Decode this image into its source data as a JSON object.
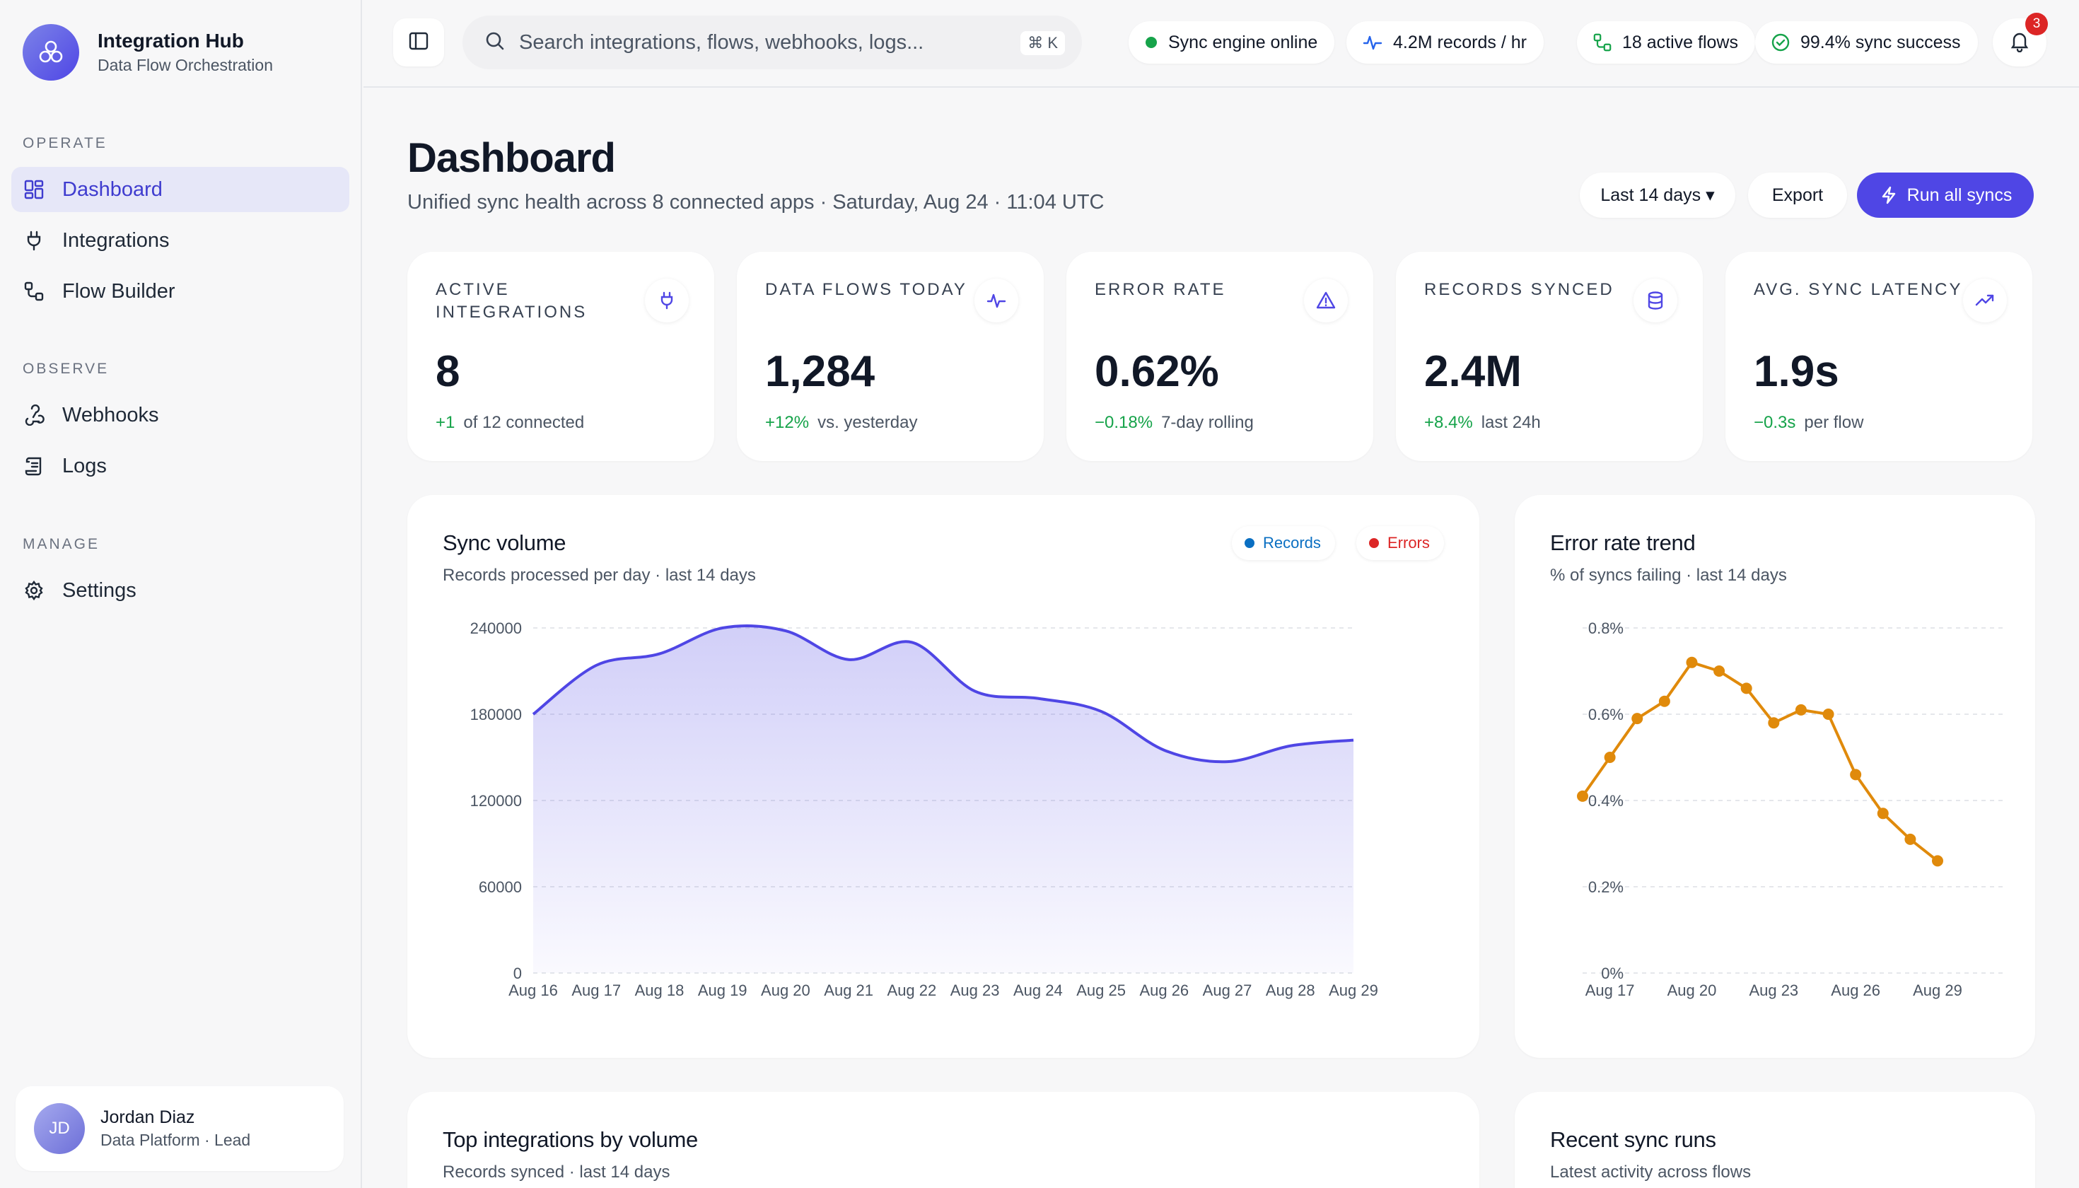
{
  "brand": {
    "title": "Integration Hub",
    "subtitle": "Data Flow Orchestration"
  },
  "nav": {
    "sections": [
      {
        "label": "OPERATE",
        "items": [
          {
            "label": "Dashboard",
            "icon": "grid-icon",
            "active": true
          },
          {
            "label": "Integrations",
            "icon": "plug-icon"
          },
          {
            "label": "Flow Builder",
            "icon": "flow-icon"
          }
        ]
      },
      {
        "label": "OBSERVE",
        "items": [
          {
            "label": "Webhooks",
            "icon": "webhook-icon"
          },
          {
            "label": "Logs",
            "icon": "logs-icon"
          }
        ]
      },
      {
        "label": "MANAGE",
        "items": [
          {
            "label": "Settings",
            "icon": "gear-icon"
          }
        ]
      }
    ]
  },
  "user": {
    "initials": "JD",
    "name": "Jordan Diaz",
    "role": "Data Platform · Lead"
  },
  "topbar": {
    "search_placeholder": "Search integrations, flows, webhooks, logs...",
    "shortcut": "⌘ K",
    "status_pills": [
      {
        "label": "Sync engine online",
        "icon": "status-dot-icon",
        "color": "#16a34a"
      },
      {
        "label": "4.2M records / hr",
        "icon": "pulse-icon",
        "color": "#2563eb"
      },
      {
        "label": "18 active flows",
        "icon": "flow-icon",
        "color": "#16a34a"
      },
      {
        "label": "99.4% sync success",
        "icon": "check-circle-icon",
        "color": "#16a34a"
      }
    ],
    "notifications": "3"
  },
  "page": {
    "title": "Dashboard",
    "subtitle": "Unified sync health across 8 connected apps · Saturday, Aug 24 · 11:04 UTC",
    "range_label": "Last 14 days ▾",
    "export_label": "Export",
    "run_label": "Run all syncs"
  },
  "kpis": [
    {
      "label": "Active integrations",
      "value": "8",
      "delta": "+1",
      "note": "of 12 connected",
      "icon": "plug-icon"
    },
    {
      "label": "Data flows today",
      "value": "1,284",
      "delta": "+12%",
      "note": "vs. yesterday",
      "icon": "pulse-icon"
    },
    {
      "label": "Error rate",
      "value": "0.62%",
      "delta": "−0.18%",
      "note": "7-day rolling",
      "icon": "warning-icon"
    },
    {
      "label": "Records synced",
      "value": "2.4M",
      "delta": "+8.4%",
      "note": "last 24h",
      "icon": "database-icon"
    },
    {
      "label": "Avg. sync latency",
      "value": "1.9s",
      "delta": "−0.3s",
      "note": "per flow",
      "icon": "trend-up-icon"
    }
  ],
  "colors": {
    "accent": "#4f46e5",
    "records": "#0a6fc2",
    "errors": "#dc2626",
    "error_line": "#e08a0b",
    "positive": "#16a34a"
  },
  "sync_panel": {
    "title": "Sync volume",
    "subtitle": "Records processed per day · last 14 days",
    "legend": [
      "Records",
      "Errors"
    ]
  },
  "error_panel": {
    "title": "Error rate trend",
    "subtitle": "% of syncs failing · last 14 days"
  },
  "bottom_panels": [
    {
      "title": "Top integrations by volume",
      "subtitle": "Records synced · last 14 days"
    },
    {
      "title": "Recent sync runs",
      "subtitle": "Latest activity across flows"
    }
  ],
  "chart_data": [
    {
      "type": "area",
      "title": "Sync volume",
      "x": [
        "Aug 16",
        "Aug 17",
        "Aug 18",
        "Aug 19",
        "Aug 20",
        "Aug 21",
        "Aug 22",
        "Aug 23",
        "Aug 24",
        "Aug 25",
        "Aug 26",
        "Aug 27",
        "Aug 28",
        "Aug 29"
      ],
      "series": [
        {
          "name": "Records",
          "values": [
            180000,
            214000,
            222000,
            240000,
            238000,
            218000,
            230000,
            196000,
            191000,
            182000,
            155000,
            147000,
            158000,
            162000
          ]
        }
      ],
      "yticks": [
        0,
        60000,
        120000,
        180000,
        240000
      ],
      "ylim": [
        0,
        240000
      ],
      "grid": true,
      "legend": "top-right"
    },
    {
      "type": "line",
      "title": "Error rate trend",
      "x": [
        "Aug 16",
        "Aug 17",
        "Aug 18",
        "Aug 19",
        "Aug 20",
        "Aug 21",
        "Aug 22",
        "Aug 23",
        "Aug 24",
        "Aug 25",
        "Aug 26",
        "Aug 27",
        "Aug 28",
        "Aug 29"
      ],
      "xticks": [
        "Aug 17",
        "Aug 20",
        "Aug 23",
        "Aug 26",
        "Aug 29"
      ],
      "series": [
        {
          "values": [
            0.41,
            0.5,
            0.59,
            0.63,
            0.72,
            0.7,
            0.66,
            0.58,
            0.61,
            0.6,
            0.46,
            0.37,
            0.31,
            0.26
          ]
        }
      ],
      "yticks": [
        "0%",
        "0.2%",
        "0.4%",
        "0.6%",
        "0.8%"
      ],
      "ylim": [
        0,
        0.8
      ],
      "grid": true
    }
  ]
}
